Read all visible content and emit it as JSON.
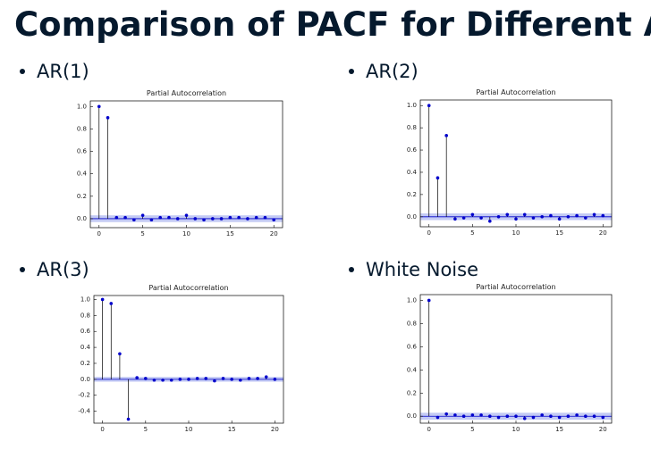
{
  "title": "Comparison of PACF for Different AR",
  "bullets": [
    "AR(1)",
    "AR(2)",
    "AR(3)",
    "White Noise"
  ],
  "chart_data": [
    {
      "type": "stem",
      "title": "Partial Autocorrelation",
      "color": "#0000cc",
      "band_color": "#aab4f0",
      "x": [
        0,
        1,
        2,
        3,
        4,
        5,
        6,
        7,
        8,
        9,
        10,
        11,
        12,
        13,
        14,
        15,
        16,
        17,
        18,
        19,
        20
      ],
      "values": [
        1.0,
        0.9,
        0.01,
        0.01,
        -0.01,
        0.03,
        -0.01,
        0.01,
        0.01,
        0.0,
        0.03,
        0.0,
        -0.01,
        0.0,
        0.0,
        0.01,
        0.01,
        0.0,
        0.01,
        0.01,
        -0.01
      ],
      "confidence_band": [
        -0.03,
        0.03
      ],
      "xlim": [
        -1,
        21
      ],
      "ylim": [
        -0.08,
        1.05
      ],
      "xticks": [
        0,
        5,
        10,
        15,
        20
      ],
      "yticks": [
        {
          "value": 0,
          "label": "0.0"
        },
        {
          "value": 0.2,
          "label": "0.2"
        },
        {
          "value": 0.4,
          "label": "0.4"
        },
        {
          "value": 0.6,
          "label": "0.6"
        },
        {
          "value": 0.8,
          "label": "0.8"
        },
        {
          "value": 1,
          "label": "1.0"
        }
      ]
    },
    {
      "type": "stem",
      "title": "Partial Autocorrelation",
      "color": "#0000cc",
      "band_color": "#aab4f0",
      "x": [
        0,
        1,
        2,
        3,
        4,
        5,
        6,
        7,
        8,
        9,
        10,
        11,
        12,
        13,
        14,
        15,
        16,
        17,
        18,
        19,
        20
      ],
      "values": [
        1.0,
        0.35,
        0.73,
        -0.02,
        -0.01,
        0.02,
        -0.01,
        -0.04,
        0.0,
        0.02,
        -0.02,
        0.02,
        -0.01,
        0.0,
        0.01,
        -0.02,
        0.0,
        0.01,
        -0.01,
        0.02,
        0.01
      ],
      "confidence_band": [
        -0.03,
        0.03
      ],
      "xlim": [
        -1,
        21
      ],
      "ylim": [
        -0.09,
        1.05
      ],
      "xticks": [
        0,
        5,
        10,
        15,
        20
      ],
      "yticks": [
        {
          "value": 0,
          "label": "0.0"
        },
        {
          "value": 0.2,
          "label": "0.2"
        },
        {
          "value": 0.4,
          "label": "0.4"
        },
        {
          "value": 0.6,
          "label": "0.6"
        },
        {
          "value": 0.8,
          "label": "0.8"
        },
        {
          "value": 1,
          "label": "1.0"
        }
      ]
    },
    {
      "type": "stem",
      "title": "Partial Autocorrelation",
      "color": "#0000cc",
      "band_color": "#aab4f0",
      "x": [
        0,
        1,
        2,
        3,
        4,
        5,
        6,
        7,
        8,
        9,
        10,
        11,
        12,
        13,
        14,
        15,
        16,
        17,
        18,
        19,
        20
      ],
      "values": [
        1.0,
        0.95,
        0.32,
        -0.5,
        0.02,
        0.01,
        -0.01,
        -0.01,
        -0.01,
        0.0,
        0.0,
        0.01,
        0.01,
        -0.02,
        0.01,
        0.0,
        -0.01,
        0.01,
        0.01,
        0.03,
        0.0
      ],
      "confidence_band": [
        -0.03,
        0.03
      ],
      "xlim": [
        -1,
        21
      ],
      "ylim": [
        -0.55,
        1.05
      ],
      "xticks": [
        0,
        5,
        10,
        15,
        20
      ],
      "yticks": [
        {
          "value": -0.4,
          "label": "-0.4"
        },
        {
          "value": -0.2,
          "label": "-0.2"
        },
        {
          "value": 0,
          "label": "0.0"
        },
        {
          "value": 0.2,
          "label": "0.2"
        },
        {
          "value": 0.4,
          "label": "0.4"
        },
        {
          "value": 0.6,
          "label": "0.6"
        },
        {
          "value": 0.8,
          "label": "0.8"
        },
        {
          "value": 1,
          "label": "1.0"
        }
      ]
    },
    {
      "type": "stem",
      "title": "Partial Autocorrelation",
      "color": "#0000cc",
      "band_color": "#aab4f0",
      "x": [
        0,
        1,
        2,
        3,
        4,
        5,
        6,
        7,
        8,
        9,
        10,
        11,
        12,
        13,
        14,
        15,
        16,
        17,
        18,
        19,
        20
      ],
      "values": [
        1.0,
        -0.01,
        0.02,
        0.01,
        0.0,
        0.01,
        0.01,
        0.0,
        -0.01,
        0.0,
        0.0,
        -0.02,
        -0.01,
        0.01,
        0.0,
        -0.01,
        0.0,
        0.01,
        0.0,
        0.0,
        -0.01
      ],
      "confidence_band": [
        -0.03,
        0.03
      ],
      "xlim": [
        -1,
        21
      ],
      "ylim": [
        -0.06,
        1.05
      ],
      "xticks": [
        0,
        5,
        10,
        15,
        20
      ],
      "yticks": [
        {
          "value": 0,
          "label": "0.0"
        },
        {
          "value": 0.2,
          "label": "0.2"
        },
        {
          "value": 0.4,
          "label": "0.4"
        },
        {
          "value": 0.6,
          "label": "0.6"
        },
        {
          "value": 0.8,
          "label": "0.8"
        },
        {
          "value": 1,
          "label": "1.0"
        }
      ]
    }
  ]
}
